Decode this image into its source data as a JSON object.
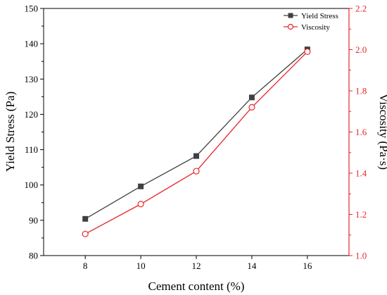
{
  "chart_data": {
    "type": "line",
    "x": [
      8,
      10,
      12,
      14,
      16
    ],
    "xlabel": "Cement content (%)",
    "ylabel": "Yield Stress (Pa)",
    "y2label": "Viscosity (Pa·s)",
    "xlim": [
      6.5,
      17.5
    ],
    "ylim": [
      80,
      150
    ],
    "y2lim": [
      1.0,
      2.2
    ],
    "xticks": [
      "8",
      "10",
      "12",
      "14",
      "16"
    ],
    "yticks": [
      "80",
      "90",
      "100",
      "110",
      "120",
      "130",
      "140",
      "150"
    ],
    "y2ticks": [
      "1.0",
      "1.2",
      "1.4",
      "1.6",
      "1.8",
      "2.0",
      "2.2"
    ],
    "legend_position": "top-right",
    "series": [
      {
        "name": "Yield Stress",
        "axis": "left",
        "values": [
          90.4,
          99.6,
          108.2,
          124.8,
          138.4
        ],
        "color": "#404040",
        "marker": "filled-square"
      },
      {
        "name": "Viscosity",
        "axis": "right",
        "values": [
          1.105,
          1.25,
          1.41,
          1.72,
          1.99
        ],
        "color": "#e8262a",
        "marker": "open-circle"
      }
    ]
  }
}
